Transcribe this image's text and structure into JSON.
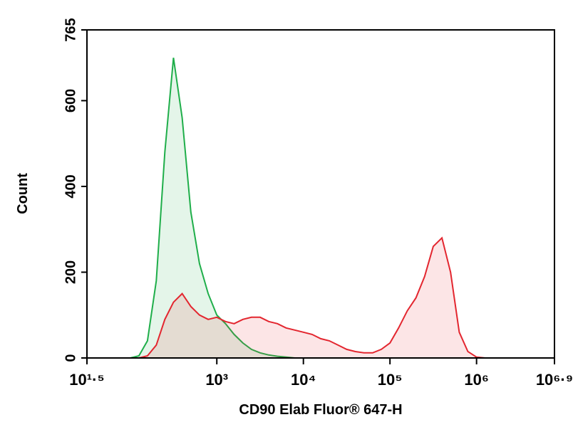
{
  "chart_data": {
    "type": "histogram-overlay",
    "xlabel": "CD90 Elab Fluor® 647-H",
    "ylabel": "Count",
    "xscale": "log",
    "xlim": [
      31.6228,
      7943282
    ],
    "xticks": [
      {
        "value": 31.6228,
        "label": "10¹·⁵"
      },
      {
        "value": 1000,
        "label": "10³"
      },
      {
        "value": 10000,
        "label": "10⁴"
      },
      {
        "value": 100000,
        "label": "10⁵"
      },
      {
        "value": 1000000,
        "label": "10⁶"
      },
      {
        "value": 7943282,
        "label": "10⁶·⁹"
      }
    ],
    "ylim": [
      0,
      765
    ],
    "yticks": [
      0,
      200,
      400,
      600,
      765
    ],
    "series": [
      {
        "color": "#1fae4a",
        "x": [
          100,
          126,
          158,
          200,
          251,
          316,
          398,
          501,
          631,
          794,
          1000,
          1259,
          1585,
          1995,
          2512,
          3162,
          3981,
          5012,
          6310,
          7943
        ],
        "values": [
          0,
          5,
          40,
          180,
          480,
          700,
          560,
          340,
          220,
          150,
          100,
          80,
          55,
          35,
          20,
          12,
          7,
          4,
          2,
          0
        ]
      },
      {
        "color": "#e3262f",
        "x": [
          100,
          126,
          158,
          200,
          251,
          316,
          398,
          501,
          631,
          794,
          1000,
          1259,
          1585,
          1995,
          2512,
          3162,
          3981,
          5012,
          6310,
          7943,
          10000,
          12589,
          15849,
          19953,
          25119,
          31623,
          39811,
          50119,
          63096,
          79433,
          100000,
          125893,
          158489,
          199526,
          251189,
          316228,
          398107,
          501187,
          630957,
          794328,
          1000000,
          1258925
        ],
        "values": [
          0,
          0,
          5,
          30,
          90,
          130,
          150,
          120,
          100,
          90,
          95,
          85,
          80,
          90,
          95,
          95,
          85,
          80,
          70,
          65,
          60,
          55,
          45,
          40,
          30,
          20,
          15,
          12,
          12,
          20,
          35,
          70,
          110,
          140,
          190,
          260,
          280,
          200,
          60,
          15,
          2,
          0
        ]
      }
    ]
  }
}
